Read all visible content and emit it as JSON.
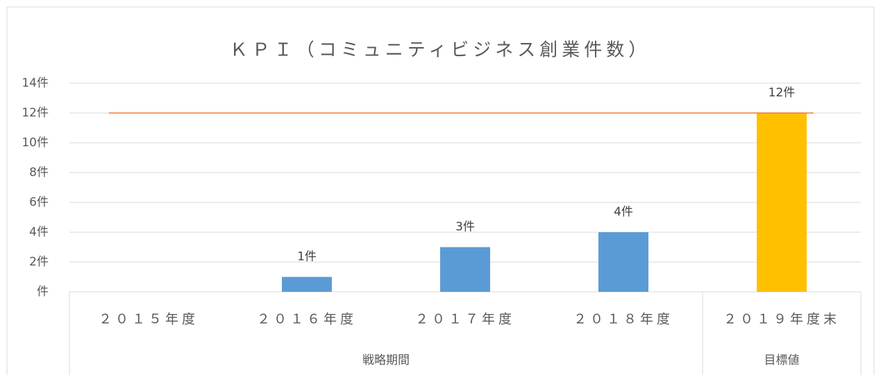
{
  "chart_data": {
    "type": "bar",
    "title": "ＫＰＩ（コミュニティビジネス創業件数）",
    "categories": [
      "２０１５年度",
      "２０１６年度",
      "２０１７年度",
      "２０１８年度",
      "２０１９年度末"
    ],
    "values": [
      null,
      1,
      3,
      4,
      12
    ],
    "value_labels": [
      null,
      "1件",
      "3件",
      "4件",
      "12件"
    ],
    "colors": [
      "#5b9bd5",
      "#5b9bd5",
      "#5b9bd5",
      "#5b9bd5",
      "#ffc000"
    ],
    "groups": [
      {
        "label": "戦略期間",
        "span": 4
      },
      {
        "label": "目標値",
        "span": 1
      }
    ],
    "target_line": {
      "value": 12,
      "color": "#ed7d31"
    },
    "ylim": [
      0,
      14
    ],
    "yticks": [
      {
        "value": 0,
        "label": "件"
      },
      {
        "value": 2,
        "label": "2件"
      },
      {
        "value": 4,
        "label": "4件"
      },
      {
        "value": 6,
        "label": "6件"
      },
      {
        "value": 8,
        "label": "8件"
      },
      {
        "value": 10,
        "label": "10件"
      },
      {
        "value": 12,
        "label": "12件"
      },
      {
        "value": 14,
        "label": "14件"
      }
    ],
    "grid": true
  }
}
